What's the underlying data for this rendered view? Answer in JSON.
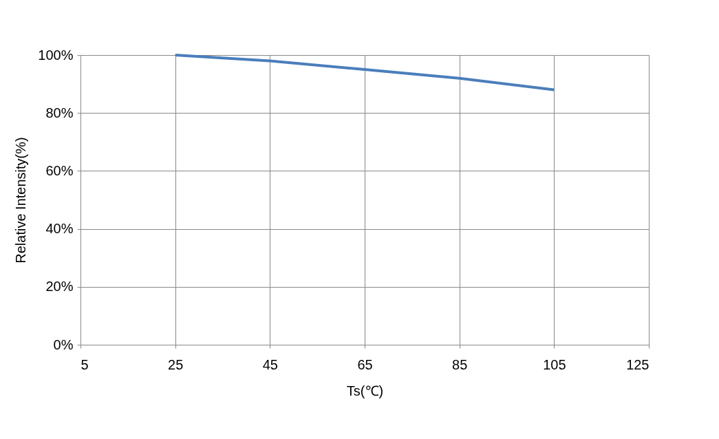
{
  "chart_data": {
    "type": "line",
    "xlabel": "Ts(℃)",
    "ylabel": "Relative Intensity(%)",
    "x": [
      25,
      45,
      65,
      85,
      105
    ],
    "series": [
      {
        "color": "#4a7ebb",
        "values": [
          100,
          98,
          95,
          92,
          88
        ]
      }
    ],
    "xlim": [
      5,
      125
    ],
    "xticks": [
      5,
      25,
      45,
      65,
      85,
      105,
      125
    ],
    "ylim": [
      0,
      100
    ],
    "yticks": [
      {
        "value": 0,
        "label": "0%"
      },
      {
        "value": 20,
        "label": "20%"
      },
      {
        "value": 40,
        "label": "40%"
      },
      {
        "value": 60,
        "label": "60%"
      },
      {
        "value": 80,
        "label": "80%"
      },
      {
        "value": 100,
        "label": "100%"
      }
    ],
    "grid": true,
    "marker": "none",
    "line_style": "solid"
  }
}
